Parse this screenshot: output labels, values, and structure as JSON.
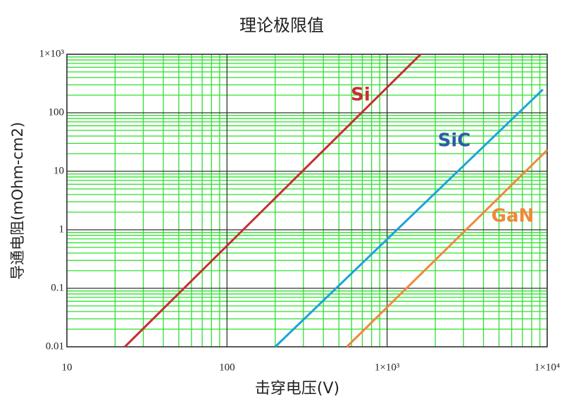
{
  "chart_data": {
    "type": "line",
    "title": "理论极限值",
    "x_label": "击穿电压(V)",
    "y_label": "导通电阻(mOhm-cm2)",
    "log_x": true,
    "log_y": true,
    "grid": true,
    "xlim": [
      10,
      10000
    ],
    "xticks": [
      10,
      100,
      {
        "value": 1000,
        "label": "1×10³"
      },
      {
        "value": 10000,
        "label": "1×10⁴"
      }
    ],
    "ylim": [
      0.01,
      1000
    ],
    "yticks": [
      0.01,
      0.1,
      1,
      10,
      100,
      {
        "value": 1000,
        "label": "1×10³"
      }
    ],
    "series": [
      {
        "name": "Si",
        "color": "#c62f2f",
        "x": [
          23,
          1620
        ],
        "values": [
          0.01,
          1000
        ]
      },
      {
        "name": "SiC",
        "color": "#1ea3dc",
        "x": [
          200,
          9400
        ],
        "values": [
          0.01,
          250
        ]
      },
      {
        "name": "GaN",
        "color": "#f0883a",
        "x": [
          560,
          10000
        ],
        "values": [
          0.01,
          23
        ]
      }
    ]
  }
}
